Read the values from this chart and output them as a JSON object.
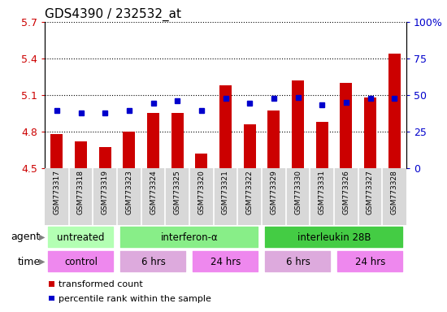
{
  "title": "GDS4390 / 232532_at",
  "samples": [
    "GSM773317",
    "GSM773318",
    "GSM773319",
    "GSM773323",
    "GSM773324",
    "GSM773325",
    "GSM773320",
    "GSM773321",
    "GSM773322",
    "GSM773329",
    "GSM773330",
    "GSM773331",
    "GSM773326",
    "GSM773327",
    "GSM773328"
  ],
  "bar_values": [
    4.78,
    4.72,
    4.67,
    4.8,
    4.95,
    4.95,
    4.62,
    5.18,
    4.86,
    4.97,
    5.22,
    4.88,
    5.2,
    5.08,
    5.44
  ],
  "dot_values": [
    4.97,
    4.95,
    4.95,
    4.97,
    5.03,
    5.05,
    4.97,
    5.07,
    5.03,
    5.07,
    5.08,
    5.02,
    5.04,
    5.07,
    5.07
  ],
  "bar_color": "#cc0000",
  "dot_color": "#0000cc",
  "ymin": 4.5,
  "ymax": 5.7,
  "yticks": [
    4.5,
    4.8,
    5.1,
    5.4,
    5.7
  ],
  "ytick_labels": [
    "4.5",
    "4.8",
    "5.1",
    "5.4",
    "5.7"
  ],
  "y2min": 0,
  "y2max": 100,
  "y2ticks": [
    0,
    25,
    50,
    75,
    100
  ],
  "y2tick_labels": [
    "0",
    "25",
    "50",
    "75",
    "100%"
  ],
  "agent_groups": [
    {
      "label": "untreated",
      "start": 0,
      "end": 3,
      "color": "#b3ffb3"
    },
    {
      "label": "interferon-α",
      "start": 3,
      "end": 9,
      "color": "#88ee88"
    },
    {
      "label": "interleukin 28B",
      "start": 9,
      "end": 15,
      "color": "#44cc44"
    }
  ],
  "time_groups": [
    {
      "label": "control",
      "start": 0,
      "end": 3,
      "color": "#ee88ee"
    },
    {
      "label": "6 hrs",
      "start": 3,
      "end": 6,
      "color": "#ddaadd"
    },
    {
      "label": "24 hrs",
      "start": 6,
      "end": 9,
      "color": "#ee88ee"
    },
    {
      "label": "6 hrs",
      "start": 9,
      "end": 12,
      "color": "#ddaadd"
    },
    {
      "label": "24 hrs",
      "start": 12,
      "end": 15,
      "color": "#ee88ee"
    }
  ],
  "legend_bar_label": "transformed count",
  "legend_dot_label": "percentile rank within the sample",
  "agent_label": "agent",
  "time_label": "time",
  "left_tick_color": "#cc0000",
  "right_tick_color": "#0000cc",
  "sample_bg_color": "#d8d8d8",
  "sample_sep_color": "#ffffff"
}
